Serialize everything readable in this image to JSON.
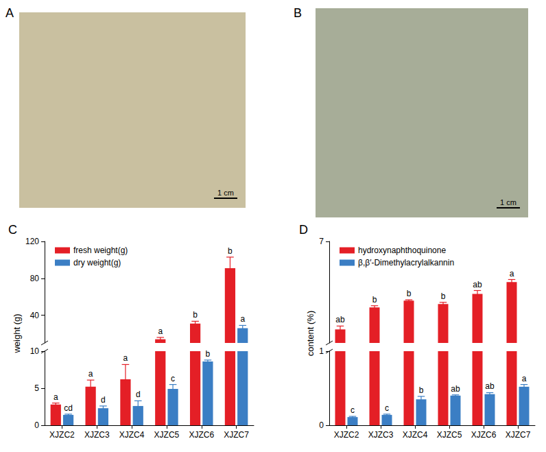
{
  "images": [
    {
      "panel": "A",
      "scale_bar": "1 cm"
    },
    {
      "panel": "B",
      "scale_bar": "1 cm"
    }
  ],
  "chart_data": [
    {
      "panel": "C",
      "type": "bar",
      "ylabel": "weight (g)",
      "categories": [
        "XJZC2",
        "XJZC3",
        "XJZC4",
        "XJZC5",
        "XJZC6",
        "XJZC7"
      ],
      "legend": "upper left",
      "segments": [
        {
          "ylim": [
            0,
            10
          ],
          "yticks": [
            0,
            5,
            10
          ]
        },
        {
          "ylim": [
            10,
            120
          ],
          "yticks": [
            40,
            80,
            120
          ]
        }
      ],
      "series": [
        {
          "name": "fresh weight(g)",
          "color": "#e41f26",
          "values": [
            2.8,
            5.2,
            6.2,
            14,
            31,
            91
          ],
          "errors": [
            0.2,
            0.9,
            2.0,
            2.0,
            2.5,
            12
          ],
          "letters": [
            "a",
            "a",
            "a",
            "a",
            "b",
            "b"
          ]
        },
        {
          "name": "dry weight(g)",
          "color": "#3b7ec4",
          "values": [
            1.4,
            2.3,
            2.6,
            4.9,
            8.6,
            26
          ],
          "errors": [
            0.1,
            0.3,
            0.7,
            0.6,
            0.2,
            3
          ],
          "letters": [
            "cd",
            "d",
            "d",
            "c",
            "b",
            "a"
          ]
        }
      ]
    },
    {
      "panel": "D",
      "type": "bar",
      "ylabel": "content (%)",
      "categories": [
        "XJZC2",
        "XJZC3",
        "XJZC4",
        "XJZC5",
        "XJZC6",
        "XJZC7"
      ],
      "legend": "upper left",
      "segments": [
        {
          "ylim": [
            0,
            1
          ],
          "yticks": [
            0,
            1
          ]
        },
        {
          "ylim": [
            1,
            7
          ],
          "yticks": [
            7
          ]
        }
      ],
      "series": [
        {
          "name": "hydroxynaphthoquinone",
          "color": "#e41f26",
          "values": [
            1.8,
            3.1,
            3.5,
            3.3,
            3.9,
            4.6
          ],
          "errors": [
            0.2,
            0.1,
            0.05,
            0.1,
            0.2,
            0.15
          ],
          "letters": [
            "ab",
            "b",
            "b",
            "b",
            "ab",
            "a"
          ]
        },
        {
          "name": "β,β′-Dimethylacrylalkannin",
          "color": "#3b7ec4",
          "values": [
            0.11,
            0.14,
            0.35,
            0.4,
            0.42,
            0.52
          ],
          "errors": [
            0.01,
            0.01,
            0.04,
            0.01,
            0.02,
            0.03
          ],
          "letters": [
            "c",
            "c",
            "b",
            "ab",
            "ab",
            "a"
          ]
        }
      ]
    }
  ]
}
